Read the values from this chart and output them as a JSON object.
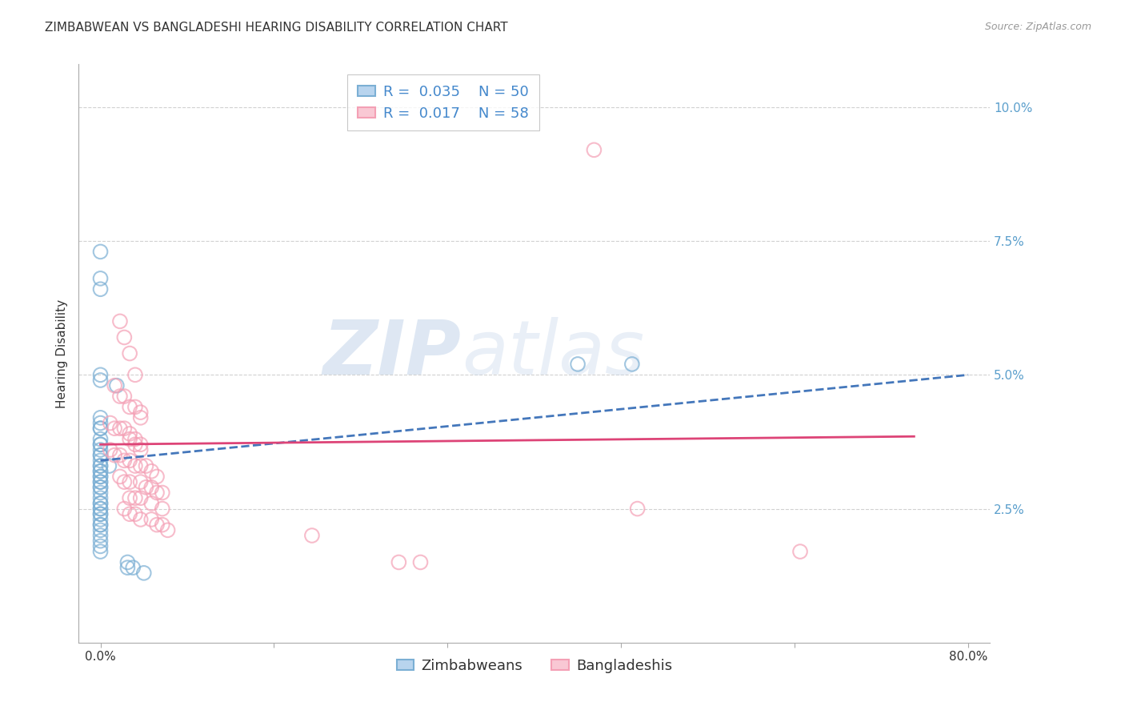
{
  "title": "ZIMBABWEAN VS BANGLADESHI HEARING DISABILITY CORRELATION CHART",
  "source": "Source: ZipAtlas.com",
  "ylabel": "Hearing Disability",
  "xlim": [
    -0.02,
    0.82
  ],
  "ylim": [
    0.0,
    0.108
  ],
  "yticks": [
    0.025,
    0.05,
    0.075,
    0.1
  ],
  "ytick_labels": [
    "2.5%",
    "5.0%",
    "7.5%",
    "10.0%"
  ],
  "xticks": [
    0.0,
    0.16,
    0.32,
    0.48,
    0.64,
    0.8
  ],
  "xtick_labels": [
    "0.0%",
    "",
    "",
    "",
    "",
    "80.0%"
  ],
  "watermark_zip": "ZIP",
  "watermark_atlas": "atlas",
  "zim_color": "#7bafd4",
  "zim_edge_color": "#5b9fc4",
  "ban_color": "#f4a0b5",
  "ban_edge_color": "#e48090",
  "zim_scatter": [
    [
      0.0,
      0.073
    ],
    [
      0.0,
      0.068
    ],
    [
      0.0,
      0.066
    ],
    [
      0.0,
      0.05
    ],
    [
      0.0,
      0.049
    ],
    [
      0.0,
      0.042
    ],
    [
      0.0,
      0.041
    ],
    [
      0.0,
      0.04
    ],
    [
      0.0,
      0.04
    ],
    [
      0.0,
      0.038
    ],
    [
      0.0,
      0.037
    ],
    [
      0.0,
      0.037
    ],
    [
      0.0,
      0.036
    ],
    [
      0.0,
      0.035
    ],
    [
      0.0,
      0.035
    ],
    [
      0.0,
      0.034
    ],
    [
      0.0,
      0.033
    ],
    [
      0.0,
      0.033
    ],
    [
      0.0,
      0.032
    ],
    [
      0.0,
      0.032
    ],
    [
      0.0,
      0.031
    ],
    [
      0.0,
      0.031
    ],
    [
      0.0,
      0.03
    ],
    [
      0.0,
      0.03
    ],
    [
      0.0,
      0.029
    ],
    [
      0.0,
      0.029
    ],
    [
      0.0,
      0.028
    ],
    [
      0.0,
      0.027
    ],
    [
      0.0,
      0.026
    ],
    [
      0.0,
      0.026
    ],
    [
      0.0,
      0.025
    ],
    [
      0.0,
      0.025
    ],
    [
      0.0,
      0.024
    ],
    [
      0.0,
      0.024
    ],
    [
      0.0,
      0.023
    ],
    [
      0.0,
      0.022
    ],
    [
      0.0,
      0.022
    ],
    [
      0.0,
      0.021
    ],
    [
      0.0,
      0.02
    ],
    [
      0.0,
      0.019
    ],
    [
      0.0,
      0.018
    ],
    [
      0.0,
      0.017
    ],
    [
      0.008,
      0.033
    ],
    [
      0.015,
      0.048
    ],
    [
      0.025,
      0.015
    ],
    [
      0.025,
      0.014
    ],
    [
      0.03,
      0.014
    ],
    [
      0.04,
      0.013
    ],
    [
      0.44,
      0.052
    ],
    [
      0.49,
      0.052
    ]
  ],
  "ban_scatter": [
    [
      0.455,
      0.092
    ],
    [
      0.018,
      0.06
    ],
    [
      0.022,
      0.057
    ],
    [
      0.027,
      0.054
    ],
    [
      0.032,
      0.05
    ],
    [
      0.013,
      0.048
    ],
    [
      0.018,
      0.046
    ],
    [
      0.022,
      0.046
    ],
    [
      0.027,
      0.044
    ],
    [
      0.032,
      0.044
    ],
    [
      0.037,
      0.043
    ],
    [
      0.037,
      0.042
    ],
    [
      0.009,
      0.041
    ],
    [
      0.013,
      0.04
    ],
    [
      0.018,
      0.04
    ],
    [
      0.022,
      0.04
    ],
    [
      0.027,
      0.039
    ],
    [
      0.027,
      0.038
    ],
    [
      0.032,
      0.038
    ],
    [
      0.032,
      0.037
    ],
    [
      0.037,
      0.037
    ],
    [
      0.037,
      0.036
    ],
    [
      0.009,
      0.036
    ],
    [
      0.013,
      0.035
    ],
    [
      0.018,
      0.035
    ],
    [
      0.022,
      0.034
    ],
    [
      0.027,
      0.034
    ],
    [
      0.032,
      0.033
    ],
    [
      0.037,
      0.033
    ],
    [
      0.042,
      0.033
    ],
    [
      0.047,
      0.032
    ],
    [
      0.052,
      0.031
    ],
    [
      0.018,
      0.031
    ],
    [
      0.022,
      0.03
    ],
    [
      0.027,
      0.03
    ],
    [
      0.037,
      0.03
    ],
    [
      0.042,
      0.029
    ],
    [
      0.047,
      0.029
    ],
    [
      0.052,
      0.028
    ],
    [
      0.057,
      0.028
    ],
    [
      0.027,
      0.027
    ],
    [
      0.032,
      0.027
    ],
    [
      0.037,
      0.027
    ],
    [
      0.047,
      0.026
    ],
    [
      0.057,
      0.025
    ],
    [
      0.022,
      0.025
    ],
    [
      0.027,
      0.024
    ],
    [
      0.032,
      0.024
    ],
    [
      0.037,
      0.023
    ],
    [
      0.047,
      0.023
    ],
    [
      0.052,
      0.022
    ],
    [
      0.057,
      0.022
    ],
    [
      0.062,
      0.021
    ],
    [
      0.495,
      0.025
    ],
    [
      0.645,
      0.017
    ],
    [
      0.275,
      0.015
    ],
    [
      0.295,
      0.015
    ],
    [
      0.195,
      0.02
    ]
  ],
  "zim_line_x": [
    0.0,
    0.8
  ],
  "zim_line_y": [
    0.034,
    0.05
  ],
  "ban_line_x": [
    0.0,
    0.75
  ],
  "ban_line_y": [
    0.037,
    0.0385
  ],
  "background_color": "#ffffff",
  "grid_color": "#cccccc",
  "title_fontsize": 11,
  "axis_label_fontsize": 11,
  "tick_label_color": "#5b9fcc",
  "tick_label_fontsize": 11,
  "legend_fontsize": 13
}
